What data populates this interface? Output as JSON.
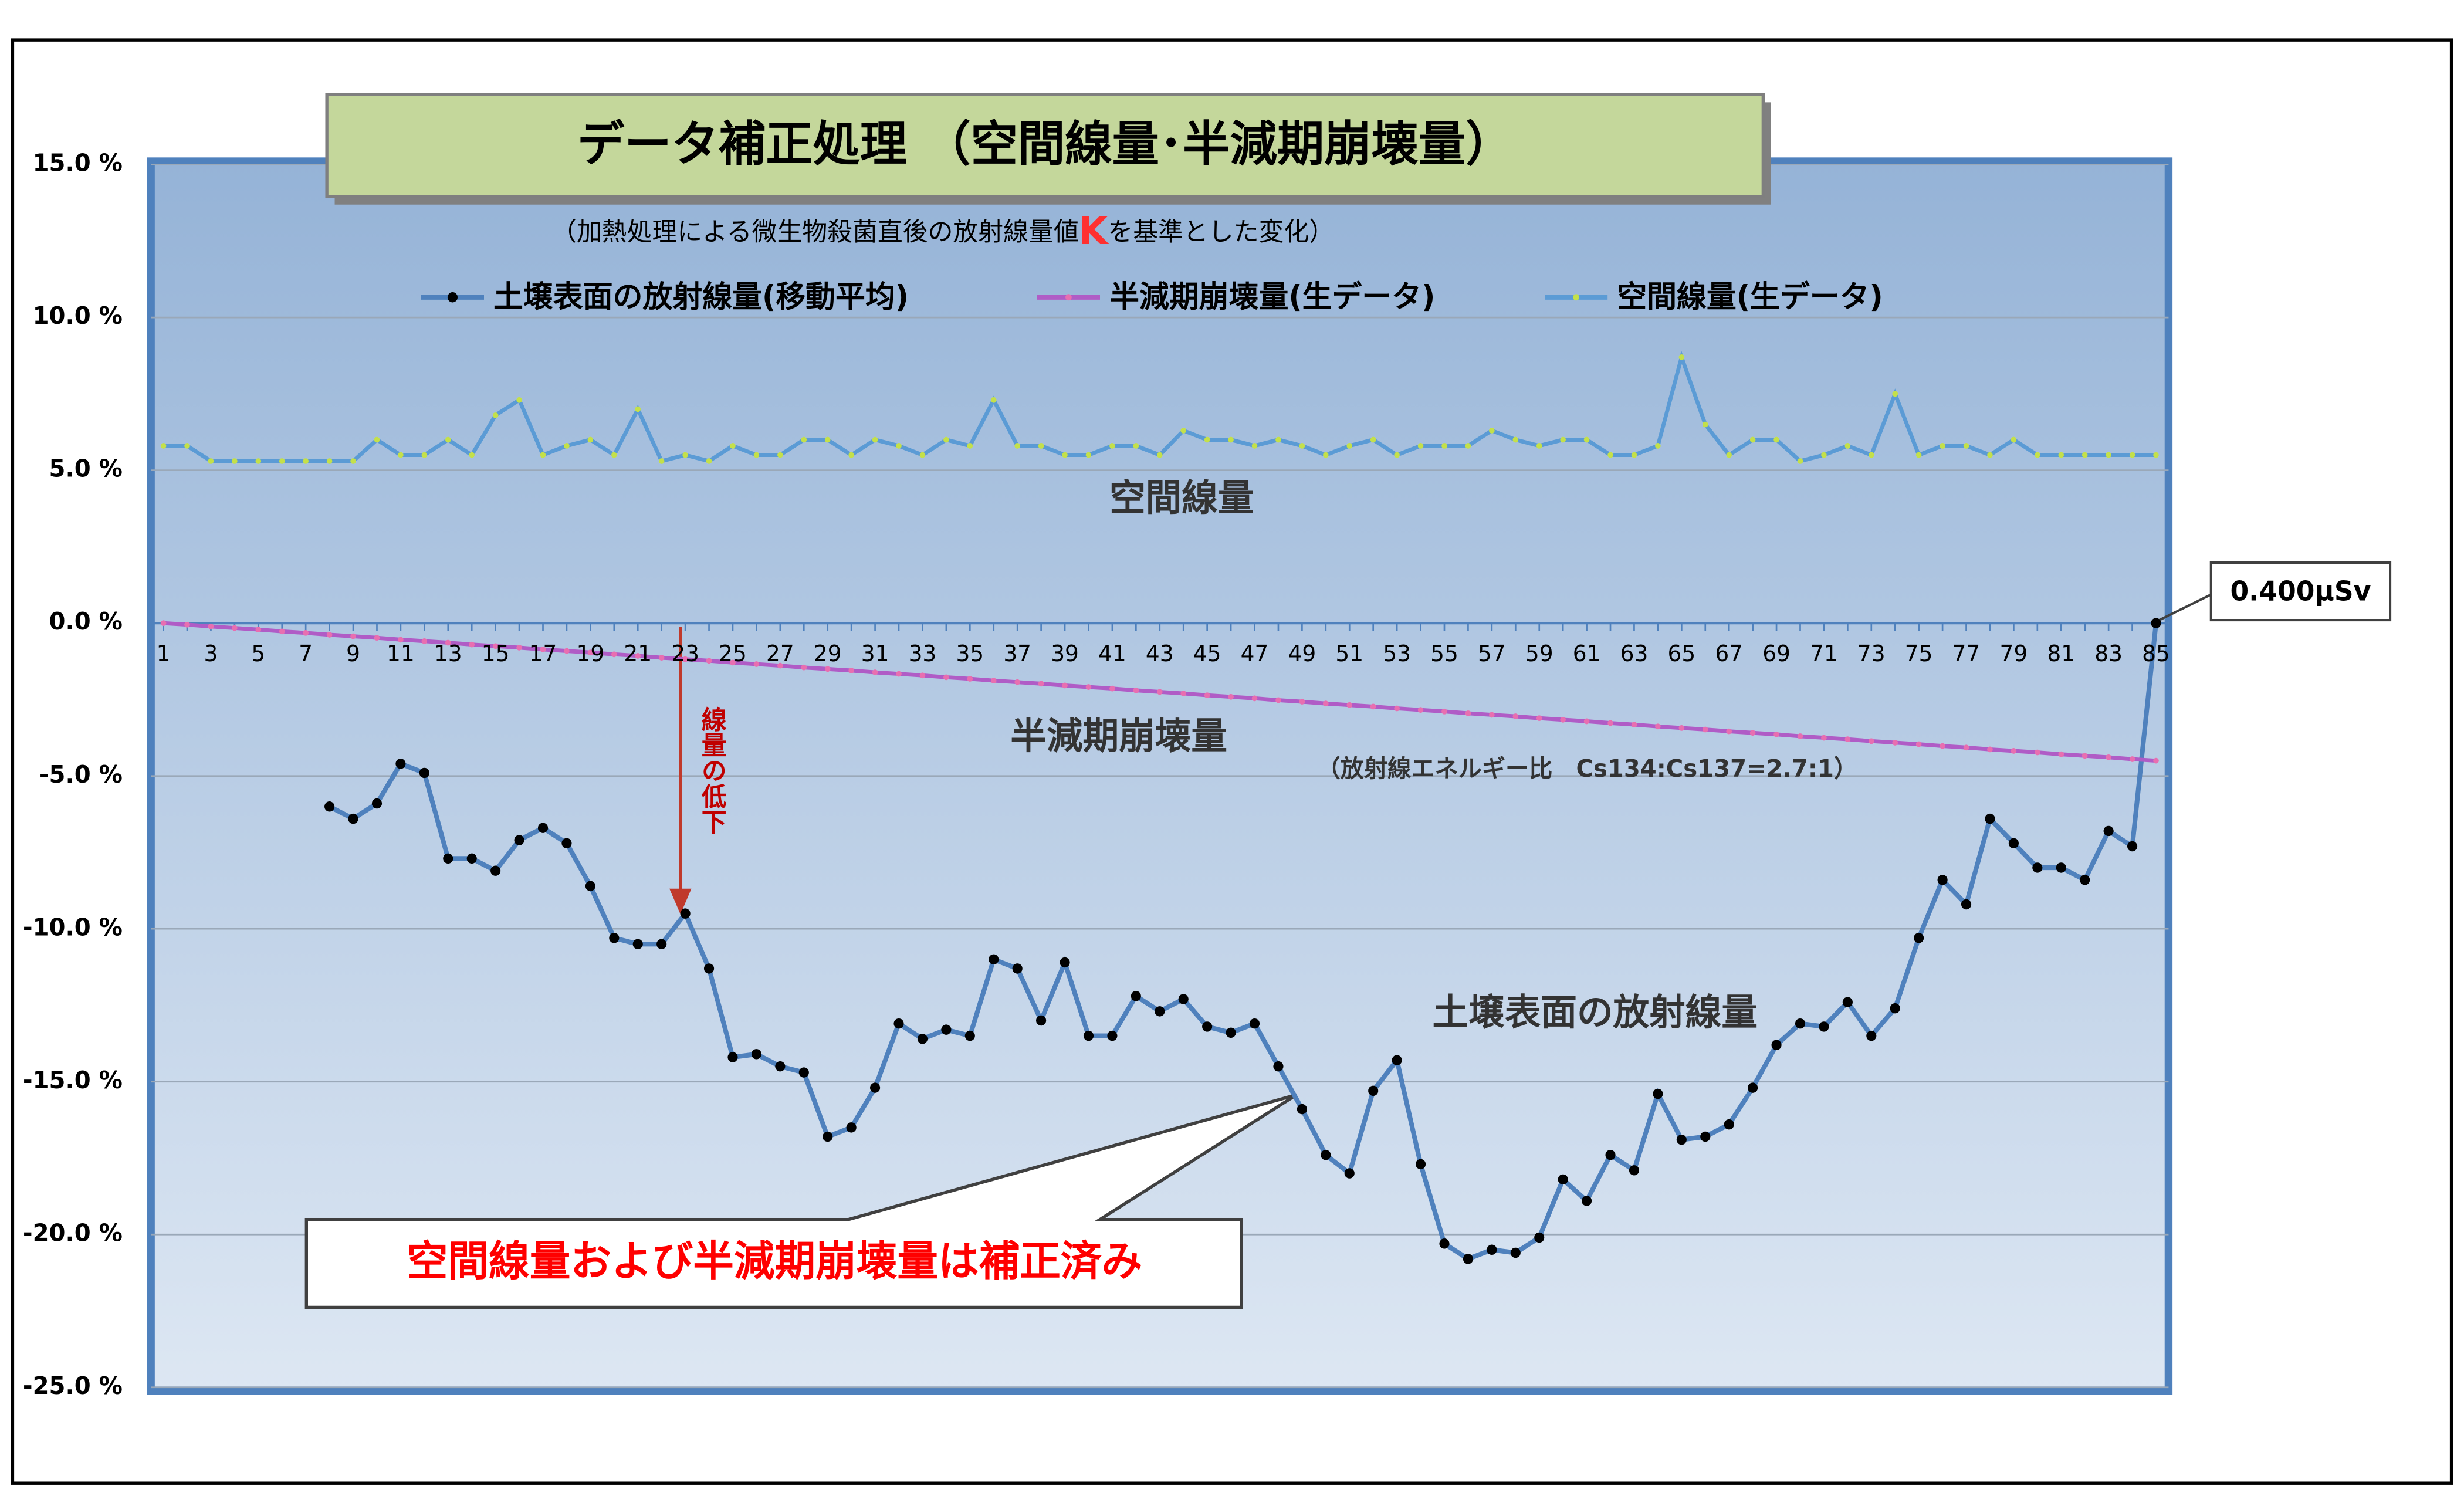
{
  "chart_data": {
    "type": "line",
    "title": "データ補正処理 （空間線量･半減期崩壊量）",
    "subtitle": [
      "（加熱処理による微生物殺菌直後の放射線量値",
      "K",
      "を基準とした変化）"
    ],
    "categories": [
      1,
      null,
      3,
      null,
      5,
      null,
      7,
      null,
      9,
      null,
      11,
      null,
      13,
      null,
      15,
      null,
      17,
      null,
      19,
      null,
      21,
      null,
      23,
      null,
      25,
      null,
      27,
      null,
      29,
      null,
      31,
      null,
      33,
      null,
      35,
      null,
      37,
      null,
      39,
      null,
      41,
      null,
      43,
      null,
      45,
      null,
      47,
      null,
      49,
      null,
      51,
      null,
      53,
      null,
      55,
      null,
      57,
      null,
      59,
      null,
      61,
      null,
      63,
      null,
      65,
      null,
      67,
      null,
      69,
      null,
      71,
      null,
      73,
      null,
      75,
      null,
      77,
      null,
      79,
      null,
      81,
      null,
      83,
      null,
      85
    ],
    "series": [
      {
        "name": "土壌表面の放射線量(移動平均)",
        "color": "#4f81bd",
        "marker_color": "#000000",
        "values": [
          null,
          null,
          null,
          null,
          null,
          null,
          null,
          -6.0,
          -6.4,
          -5.9,
          -4.6,
          -4.9,
          -7.7,
          -7.7,
          -8.1,
          -7.1,
          -6.7,
          -7.2,
          -8.6,
          -10.3,
          -10.5,
          -10.5,
          -9.5,
          -11.3,
          -14.2,
          -14.1,
          -14.5,
          -14.7,
          -16.8,
          -16.5,
          -15.2,
          -13.1,
          -13.6,
          -13.3,
          -13.5,
          -11.0,
          -11.3,
          -13.0,
          -11.1,
          -13.5,
          -13.5,
          -12.2,
          -12.7,
          -12.3,
          -13.2,
          -13.4,
          -13.1,
          -14.5,
          -15.9,
          -17.4,
          -18.0,
          -15.3,
          -14.3,
          -17.7,
          -20.3,
          -20.8,
          -20.5,
          -20.6,
          -20.1,
          -18.2,
          -18.9,
          -17.4,
          -17.9,
          -15.4,
          -16.9,
          -16.8,
          -16.4,
          -15.2,
          -13.8,
          -13.1,
          -13.2,
          -12.4,
          -13.5,
          -12.6,
          -10.3,
          -8.4,
          -9.2,
          -6.4,
          -7.2,
          -8.0,
          -8.0,
          -8.4,
          -6.8,
          -7.3,
          0.0
        ]
      },
      {
        "name": "半減期崩壊量(生データ)",
        "color": "#b05cc6",
        "marker_color": "#e86fb0",
        "values": [
          0,
          -0.05,
          -0.11,
          -0.16,
          -0.21,
          -0.27,
          -0.32,
          -0.38,
          -0.43,
          -0.48,
          -0.54,
          -0.59,
          -0.64,
          -0.7,
          -0.75,
          -0.8,
          -0.86,
          -0.91,
          -0.96,
          -1.02,
          -1.07,
          -1.13,
          -1.18,
          -1.23,
          -1.29,
          -1.34,
          -1.39,
          -1.45,
          -1.5,
          -1.55,
          -1.61,
          -1.66,
          -1.71,
          -1.77,
          -1.82,
          -1.88,
          -1.93,
          -1.98,
          -2.04,
          -2.09,
          -2.14,
          -2.2,
          -2.25,
          -2.3,
          -2.36,
          -2.41,
          -2.46,
          -2.52,
          -2.57,
          -2.63,
          -2.68,
          -2.73,
          -2.79,
          -2.84,
          -2.89,
          -2.95,
          -3.0,
          -3.05,
          -3.11,
          -3.16,
          -3.21,
          -3.27,
          -3.32,
          -3.38,
          -3.43,
          -3.48,
          -3.54,
          -3.59,
          -3.64,
          -3.7,
          -3.75,
          -3.8,
          -3.86,
          -3.91,
          -3.96,
          -4.02,
          -4.07,
          -4.13,
          -4.18,
          -4.23,
          -4.29,
          -4.34,
          -4.39,
          -4.45,
          -4.5
        ]
      },
      {
        "name": "空間線量(生データ)",
        "color": "#5b9bd5",
        "marker_color": "#c4e04a",
        "values": [
          5.8,
          5.8,
          5.3,
          5.3,
          5.3,
          5.3,
          5.3,
          5.3,
          5.3,
          6.0,
          5.5,
          5.5,
          6.0,
          5.5,
          6.8,
          7.3,
          5.5,
          5.8,
          6.0,
          5.5,
          7.0,
          5.3,
          5.5,
          5.3,
          5.8,
          5.5,
          5.5,
          6.0,
          6.0,
          5.5,
          6.0,
          5.8,
          5.5,
          6.0,
          5.8,
          7.3,
          5.8,
          5.8,
          5.5,
          5.5,
          5.8,
          5.8,
          5.5,
          6.3,
          6.0,
          6.0,
          5.8,
          6.0,
          5.8,
          5.5,
          5.8,
          6.0,
          5.5,
          5.8,
          5.8,
          5.8,
          6.3,
          6.0,
          5.8,
          6.0,
          6.0,
          5.5,
          5.5,
          5.8,
          8.7,
          6.5,
          5.5,
          6.0,
          6.0,
          5.3,
          5.5,
          5.8,
          5.5,
          7.5,
          5.5,
          5.8,
          5.8,
          5.5,
          6.0,
          5.5,
          5.5,
          5.5,
          5.5,
          5.5,
          5.5
        ]
      }
    ],
    "ylim": [
      -25,
      15
    ],
    "yticks": [
      {
        "value": -25,
        "label": "-25.0 %"
      },
      {
        "value": -20,
        "label": "-20.0 %"
      },
      {
        "value": -15,
        "label": "-15.0 %"
      },
      {
        "value": -10,
        "label": "-10.0 %"
      },
      {
        "value": -5,
        "label": "-5.0 %"
      },
      {
        "value": 0,
        "label": "0.0 %"
      },
      {
        "value": 5,
        "label": "5.0 %"
      },
      {
        "value": 10,
        "label": "10.0 %"
      },
      {
        "value": 15,
        "label": "15.0 %"
      }
    ],
    "grid": true,
    "annotations": [
      "空間線量",
      "半減期崩壊量",
      "（放射線エネルギー比　Cs134:Cs137=2.7:1）",
      "土壌表面の放射線量",
      "線量の低下",
      "空間線量および半減期崩壊量は補正済み",
      "0.400μSv"
    ]
  }
}
